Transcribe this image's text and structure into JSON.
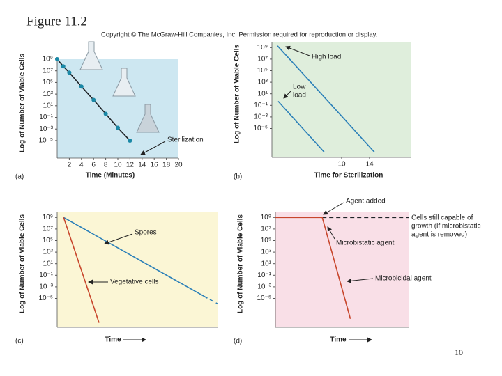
{
  "title": "Figure 11.2",
  "copyright": "Copyright © The McGraw-Hill Companies, Inc. Permission required for reproduction or display.",
  "page_number": "10",
  "chart_data": [
    {
      "type": "line",
      "panel_label": "(a)",
      "ylabel": "Log of Number of Viable Cells",
      "xlabel": "Time (Minutes)",
      "log_scale": true,
      "background": "#cde7f1",
      "xlim": [
        0,
        20
      ],
      "xticks": [
        2,
        4,
        6,
        8,
        10,
        12,
        14,
        16,
        18,
        20
      ],
      "ylim": [
        1e-08,
        1000000000
      ],
      "yticks": [
        {
          "value": 1000000000,
          "label": "10⁹"
        },
        {
          "value": 10000000,
          "label": "10⁷"
        },
        {
          "value": 100000,
          "label": "10⁵"
        },
        {
          "value": 1000,
          "label": "10³"
        },
        {
          "value": 10,
          "label": "10¹"
        },
        {
          "value": 0.1,
          "label": "10⁻¹"
        },
        {
          "value": 0.001,
          "label": "10⁻³"
        },
        {
          "value": 1e-05,
          "label": "10⁻⁵"
        }
      ],
      "series": [
        {
          "color": "#1e2327",
          "marker_color": "#1a88a6",
          "markers": true,
          "x": [
            0,
            1,
            2,
            4,
            6,
            8,
            10,
            12
          ],
          "values": [
            1000000000,
            60000000,
            5000000,
            20000,
            100,
            0.4,
            0.0016,
            1e-05
          ]
        }
      ],
      "annotations": [
        "Sterilization"
      ]
    },
    {
      "type": "line",
      "panel_label": "(b)",
      "ylabel": "Log of Number of Viable Cells",
      "xlabel": "Time for Sterilization",
      "log_scale": true,
      "background": "#dfeedc",
      "xlim": [
        0,
        20
      ],
      "xticks": [
        10,
        14
      ],
      "ylim": [
        1e-10,
        10000000000
      ],
      "yticks": [
        {
          "value": 1000000000,
          "label": "10⁹"
        },
        {
          "value": 10000000,
          "label": "10⁷"
        },
        {
          "value": 100000,
          "label": "10⁵"
        },
        {
          "value": 1000,
          "label": "10³"
        },
        {
          "value": 10,
          "label": "10¹"
        },
        {
          "value": 0.1,
          "label": "10⁻¹"
        },
        {
          "value": 0.001,
          "label": "10⁻³"
        },
        {
          "value": 1e-05,
          "label": "10⁻⁵"
        }
      ],
      "series": [
        {
          "color": "#2a7fb8",
          "x": [
            0.8,
            14.7
          ],
          "values": [
            2000000000,
            8e-10
          ]
        },
        {
          "color": "#2a7fb8",
          "x": [
            0.9,
            7.5
          ],
          "values": [
            0.5,
            8e-10
          ]
        }
      ],
      "annotations": [
        "High load",
        "Low",
        "load"
      ]
    },
    {
      "type": "line",
      "panel_label": "(c)",
      "ylabel": "Log of Number of Viable Cells",
      "xlabel": "Time",
      "log_scale": true,
      "background": "#fbf6d5",
      "xlim": [
        0,
        10
      ],
      "xticks": [],
      "ylim": [
        1e-10,
        10000000000
      ],
      "yticks": [
        {
          "value": 1000000000,
          "label": "10⁹"
        },
        {
          "value": 10000000,
          "label": "10⁷"
        },
        {
          "value": 100000,
          "label": "10⁵"
        },
        {
          "value": 1000,
          "label": "10³"
        },
        {
          "value": 10,
          "label": "10¹"
        },
        {
          "value": 0.1,
          "label": "10⁻¹"
        },
        {
          "value": 0.001,
          "label": "10⁻³"
        },
        {
          "value": 1e-05,
          "label": "10⁻⁵"
        }
      ],
      "series": [
        {
          "color": "#2a7fb8",
          "x": [
            0.4,
            9.1
          ],
          "values": [
            1000000000,
            2.5e-05
          ]
        },
        {
          "color": "#2a7fb8",
          "dashed": true,
          "x": [
            9.1,
            10
          ],
          "values": [
            2.5e-05,
            1e-06
          ]
        },
        {
          "color": "#c8462c",
          "x": [
            0.4,
            2.6
          ],
          "values": [
            1000000000,
            6e-10
          ]
        }
      ],
      "annotations": [
        "Spores",
        "Vegetative cells"
      ]
    },
    {
      "type": "line",
      "panel_label": "(d)",
      "ylabel": "Log of Number of Viable Cells",
      "xlabel": "Time",
      "log_scale": true,
      "background": "#f9dfe7",
      "xlim": [
        0,
        10
      ],
      "xticks": [],
      "ylim": [
        1e-10,
        10000000000
      ],
      "yticks": [
        {
          "value": 1000000000,
          "label": "10⁹"
        },
        {
          "value": 10000000,
          "label": "10⁷"
        },
        {
          "value": 100000,
          "label": "10⁵"
        },
        {
          "value": 1000,
          "label": "10³"
        },
        {
          "value": 10,
          "label": "10¹"
        },
        {
          "value": 0.1,
          "label": "10⁻¹"
        },
        {
          "value": 0.001,
          "label": "10⁻³"
        },
        {
          "value": 1e-05,
          "label": "10⁻⁵"
        }
      ],
      "series": [
        {
          "color": "#1e2327",
          "dashed": true,
          "x": [
            3.5,
            10
          ],
          "values": [
            1000000000,
            1000000000
          ]
        },
        {
          "color": "#c8462c",
          "x": [
            0,
            3.5,
            5.6
          ],
          "values": [
            1000000000,
            1000000000,
            3e-09
          ]
        }
      ],
      "annotations": [
        "Agent added",
        "Cells still capable of",
        "growth (if microbistatic",
        "agent is removed)",
        "Microbistatic agent",
        "Microbicidal agent"
      ]
    }
  ]
}
